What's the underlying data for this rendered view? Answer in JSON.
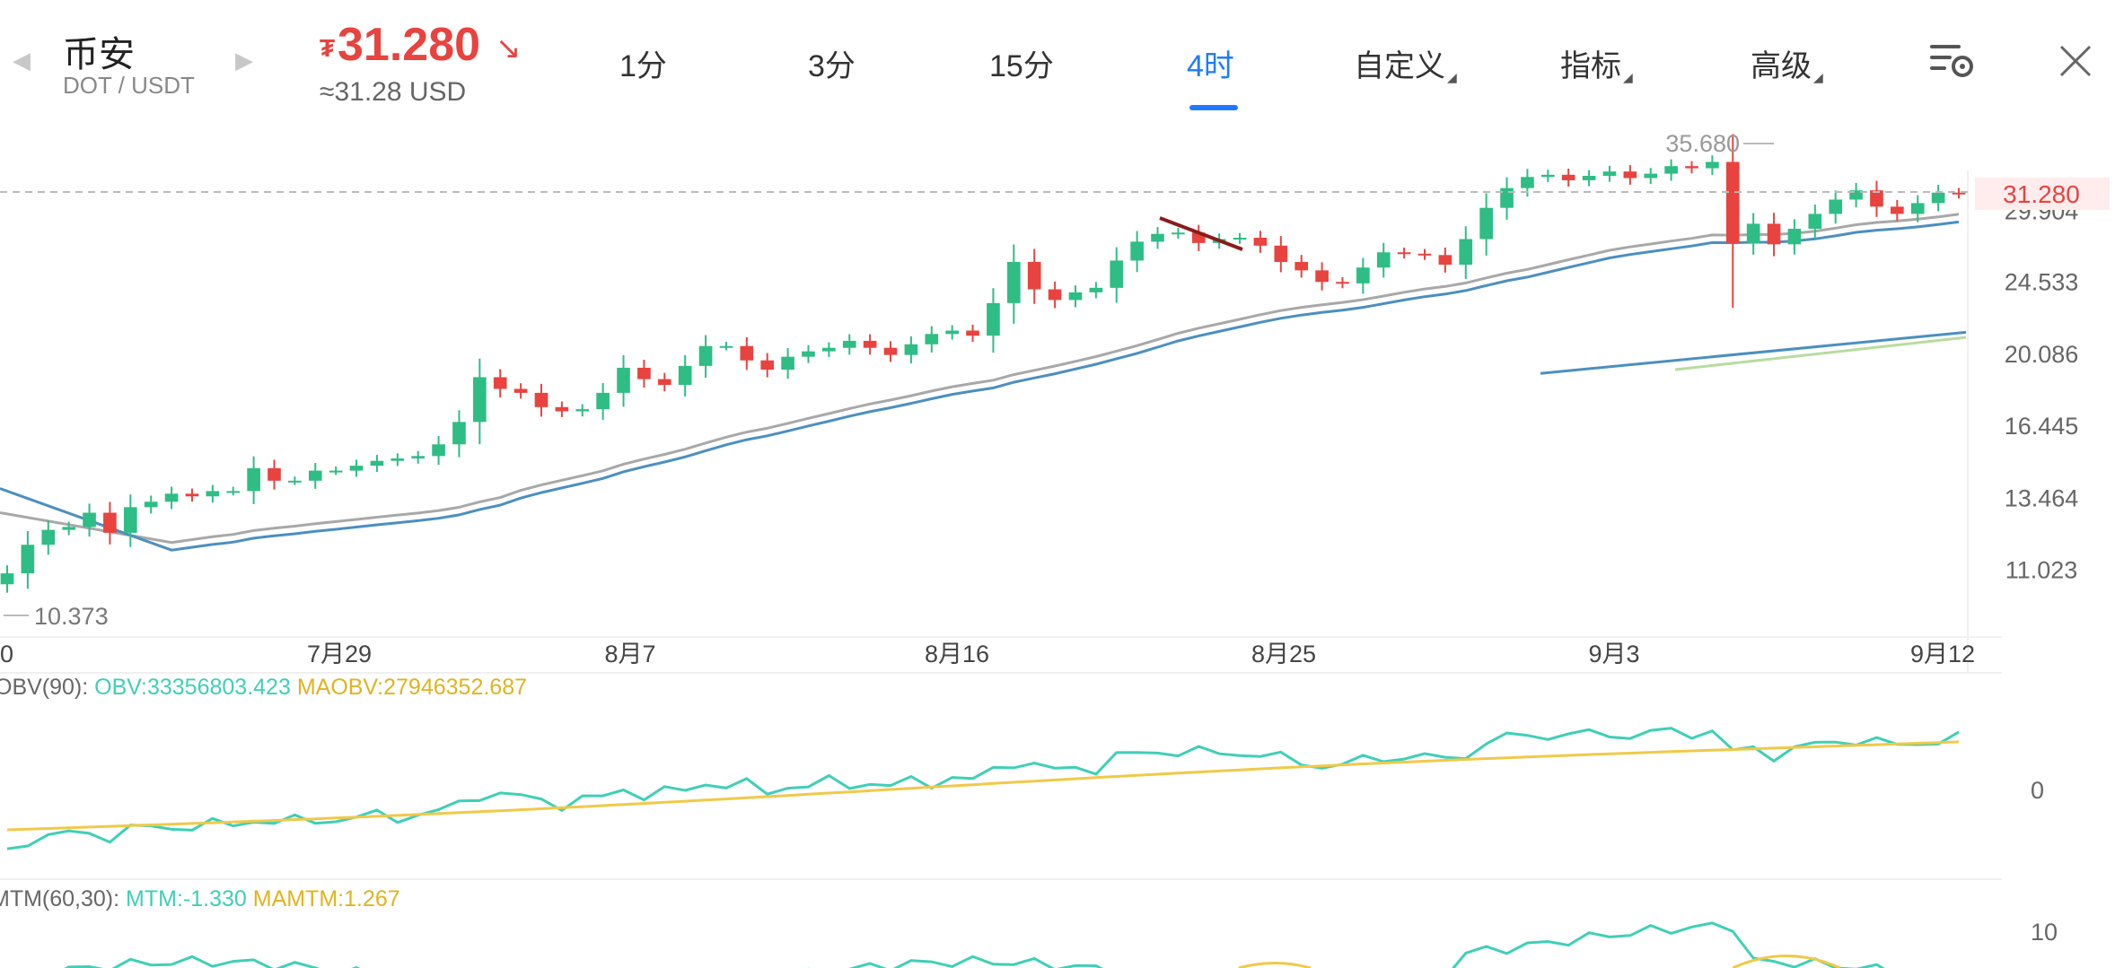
{
  "header": {
    "pair_name": "币安",
    "pair_sub": "DOT / USDT",
    "price_currency": "₮",
    "price": "31.280",
    "price_usd": "≈31.28 USD",
    "price_color": "#e8433f"
  },
  "tabs": [
    {
      "label": "1分",
      "active": false
    },
    {
      "label": "3分",
      "active": false
    },
    {
      "label": "15分",
      "active": false
    },
    {
      "label": "4时",
      "active": true
    },
    {
      "label": "自定义",
      "active": false,
      "dropdown": true
    },
    {
      "label": "指标",
      "active": false,
      "dropdown": true
    },
    {
      "label": "高级",
      "active": false,
      "dropdown": true
    }
  ],
  "icons": {
    "prev": "chevron-left-icon",
    "next": "chevron-right-icon",
    "settings": "chart-settings-icon",
    "close": "close-icon",
    "trend": "arrow-down-right-icon"
  },
  "colors": {
    "up": "#2ebd85",
    "down": "#e8433f",
    "accent": "#1e7bff",
    "ma_gray": "#a8a8a8",
    "ma_blue": "#4c8fc0",
    "ma_green": "#b8dca0",
    "obv": "#3fcfb7",
    "maobv": "#f0c948"
  },
  "chart_data": [
    {
      "type": "candlestick",
      "y_ticks": [
        "29.904",
        "24.533",
        "20.086",
        "16.445",
        "13.464",
        "11.023"
      ],
      "x_ticks": [
        "0",
        "7月29",
        "8月7",
        "8月16",
        "8月25",
        "9月3",
        "9月12"
      ],
      "current_price_label": "31.280",
      "high_label": "35.680",
      "low_label": "10.373",
      "ylim": [
        9.6,
        36.9
      ],
      "y_scale": "log",
      "grid": false,
      "close_series": [
        10.9,
        11.8,
        12.3,
        12.4,
        12.9,
        12.2,
        13.1,
        13.3,
        13.6,
        13.5,
        13.7,
        13.7,
        14.6,
        14.1,
        14.1,
        14.5,
        14.5,
        14.7,
        14.9,
        15.0,
        15.1,
        15.6,
        16.6,
        18.8,
        18.2,
        18.0,
        17.3,
        17.1,
        17.2,
        18.0,
        19.3,
        18.7,
        18.4,
        19.4,
        20.5,
        20.5,
        19.7,
        19.2,
        19.9,
        20.2,
        20.4,
        20.8,
        20.4,
        20.0,
        20.6,
        21.2,
        21.4,
        21.1,
        23.1,
        25.9,
        24.0,
        23.3,
        23.8,
        24.1,
        26.0,
        27.4,
        28.0,
        28.1,
        27.3,
        27.6,
        27.7,
        27.1,
        25.9,
        25.3,
        24.5,
        24.4,
        25.5,
        26.6,
        26.5,
        26.4,
        25.7,
        27.6,
        30.1,
        31.8,
        32.8,
        33.0,
        32.5,
        32.9,
        33.3,
        32.7,
        33.1,
        33.8,
        33.6,
        34.2,
        27.3,
        28.8,
        27.2,
        28.4,
        29.6,
        30.8,
        31.6,
        30.2,
        29.6,
        30.5,
        31.4,
        31.3
      ],
      "moving_averages": [
        {
          "color": "gray",
          "trend": "rising"
        },
        {
          "color": "blue",
          "trend": "rising"
        },
        {
          "color": "blue",
          "trend": "rising",
          "starts_near": "9月3"
        },
        {
          "color": "green",
          "trend": "rising",
          "starts_near": "9月3"
        }
      ]
    },
    {
      "type": "line",
      "title": "OBV(90):",
      "series": [
        {
          "name": "OBV",
          "value_label": "OBV:33356803.423"
        },
        {
          "name": "MAOBV",
          "value_label": "MAOBV:27946352.687"
        }
      ],
      "y_ticks": [
        "0"
      ]
    },
    {
      "type": "line",
      "title": "MTM(60,30):",
      "series": [
        {
          "name": "MTM",
          "value_label": "MTM:-1.330"
        },
        {
          "name": "MAMTM",
          "value_label": "MAMTM:1.267"
        }
      ],
      "y_ticks": [
        "10"
      ]
    }
  ]
}
